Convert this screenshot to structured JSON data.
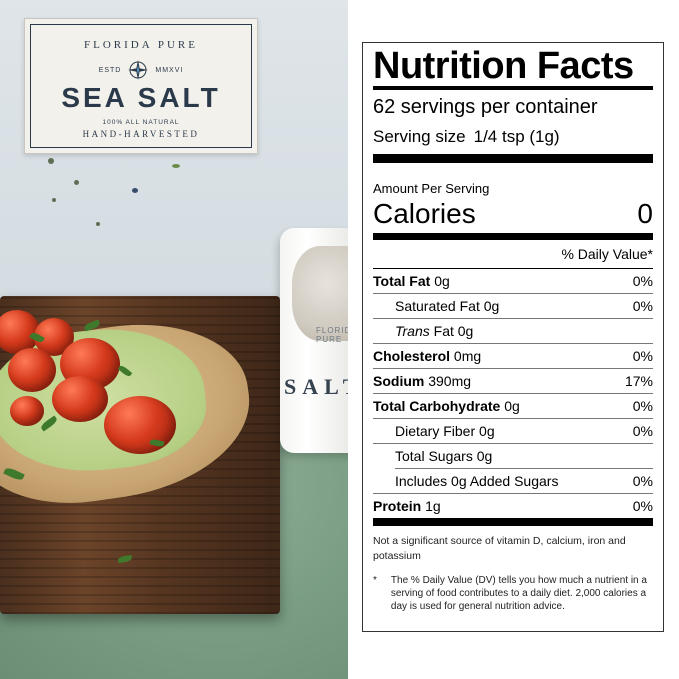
{
  "label": {
    "top": "FLORIDA PURE",
    "estd": "ESTD",
    "year": "MMXVI",
    "main": "SEA SALT",
    "natural": "100% ALL NATURAL",
    "tagline": "HAND-HARVESTED",
    "compass_icon": "compass-rose-icon"
  },
  "jar": {
    "florida": "FLORIDA PURE",
    "brand": "SALT"
  },
  "nutrition": {
    "title": "Nutrition Facts",
    "servings": "62 servings per container",
    "serving_size_label": "Serving size",
    "serving_size_value": "1/4 tsp (1g)",
    "amount_per_serving": "Amount Per Serving",
    "calories_label": "Calories",
    "calories_value": "0",
    "dv_header": "% Daily Value*",
    "rows": [
      {
        "label": "Total Fat",
        "amount": "0g",
        "dv": "0%"
      },
      {
        "label": "Saturated Fat",
        "amount": "0g",
        "dv": "0%"
      },
      {
        "label": "Trans",
        "amount": "Fat 0g",
        "dv": ""
      },
      {
        "label": "Cholesterol",
        "amount": "0mg",
        "dv": "0%"
      },
      {
        "label": "Sodium",
        "amount": "390mg",
        "dv": "17%"
      },
      {
        "label": "Total Carbohydrate",
        "amount": "0g",
        "dv": "0%"
      },
      {
        "label": "Dietary Fiber",
        "amount": "0g",
        "dv": "0%"
      },
      {
        "label": "Total Sugars",
        "amount": "0g",
        "dv": ""
      },
      {
        "label": "Includes 0g Added Sugars",
        "amount": "",
        "dv": "0%"
      },
      {
        "label": "Protein",
        "amount": "1g",
        "dv": "0%"
      }
    ],
    "footnote1": "Not a significant source of vitamin D, calcium, iron and potassium",
    "footnote_star": "*",
    "footnote2": "The % Daily Value (DV) tells you how much a nutrient in a serving of food contributes to a daily diet. 2,000 calories a day is used for general nutrition advice."
  }
}
